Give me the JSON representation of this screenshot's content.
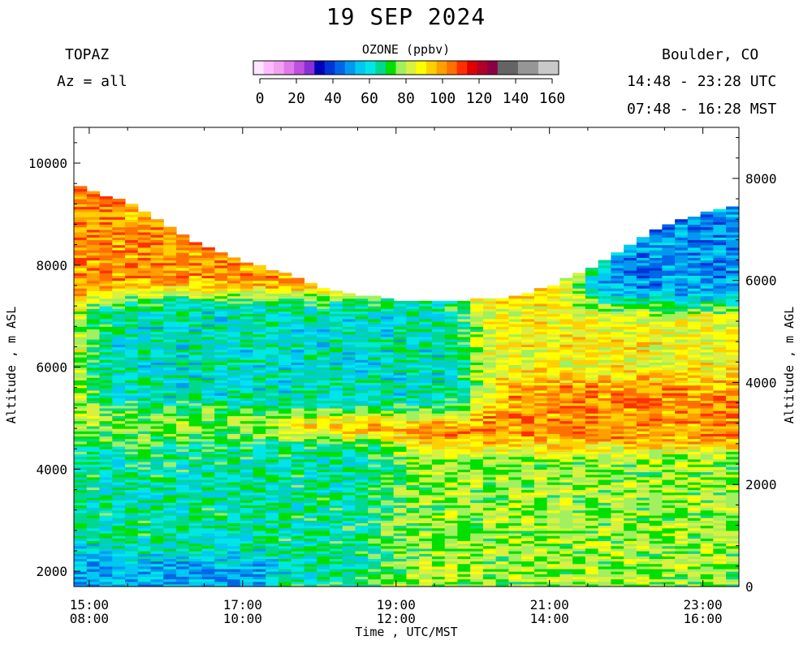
{
  "header": {
    "date_title": "19 SEP 2024",
    "instrument": "TOPAZ",
    "azimuth": "Az = all",
    "location": "Boulder, CO",
    "utc_range": "14:48 - 23:28 UTC",
    "mst_range": "07:48 - 16:28 MST"
  },
  "chart_data": {
    "type": "heatmap",
    "title": "19 SEP 2024",
    "xlabel": "Time , UTC/MST",
    "ylabel": "Altitude , m ASL",
    "ylabel_right": "Altitude , m AGL",
    "x_range_utc_hours": [
      14.8,
      23.47
    ],
    "y_range_asl_m": [
      1700,
      10700
    ],
    "y_right_offset_m": 1700,
    "x_ticks": [
      {
        "utc": "15:00",
        "mst": "08:00",
        "hour": 15
      },
      {
        "utc": "17:00",
        "mst": "10:00",
        "hour": 17
      },
      {
        "utc": "19:00",
        "mst": "12:00",
        "hour": 19
      },
      {
        "utc": "21:00",
        "mst": "14:00",
        "hour": 21
      },
      {
        "utc": "23:00",
        "mst": "16:00",
        "hour": 23
      }
    ],
    "y_ticks_left": [
      2000,
      4000,
      6000,
      8000,
      10000
    ],
    "y_ticks_right": [
      0,
      2000,
      4000,
      6000,
      8000
    ],
    "colorbar": {
      "label": "OZONE (ppbv)",
      "ticks": [
        0,
        20,
        40,
        60,
        80,
        100,
        120,
        140,
        160
      ],
      "range": [
        0,
        160
      ],
      "colors": [
        "#ffe6ff",
        "#ffbbff",
        "#f2a0f2",
        "#e07ae8",
        "#c050e0",
        "#8a2fd8",
        "#0000b8",
        "#0033d8",
        "#0066e8",
        "#0099ee",
        "#00c8f0",
        "#00e6e6",
        "#00d890",
        "#00e000",
        "#a0f060",
        "#d8f040",
        "#ffff00",
        "#ffd000",
        "#ffa000",
        "#ff7000",
        "#ff3000",
        "#e00000",
        "#b0002a",
        "#8a0044",
        "#646464",
        "#646464",
        "#969696",
        "#969696",
        "#c8c8c8",
        "#c8c8c8"
      ]
    },
    "profile_top_asl_m": [
      {
        "hour": 14.8,
        "alt": 9550
      },
      {
        "hour": 15.5,
        "alt": 9200
      },
      {
        "hour": 16.0,
        "alt": 8750
      },
      {
        "hour": 16.5,
        "alt": 8350
      },
      {
        "hour": 17.0,
        "alt": 8050
      },
      {
        "hour": 17.5,
        "alt": 7850
      },
      {
        "hour": 18.0,
        "alt": 7550
      },
      {
        "hour": 18.5,
        "alt": 7400
      },
      {
        "hour": 19.0,
        "alt": 7300
      },
      {
        "hour": 19.5,
        "alt": 7250
      },
      {
        "hour": 20.0,
        "alt": 7300
      },
      {
        "hour": 20.5,
        "alt": 7350
      },
      {
        "hour": 21.0,
        "alt": 7550
      },
      {
        "hour": 21.5,
        "alt": 7900
      },
      {
        "hour": 22.0,
        "alt": 8350
      },
      {
        "hour": 22.5,
        "alt": 8750
      },
      {
        "hour": 23.0,
        "alt": 9000
      },
      {
        "hour": 23.45,
        "alt": 9150
      }
    ],
    "ozone_features_ppbv": [
      {
        "region": "upper, late afternoon",
        "hours": [
          22.0,
          23.45
        ],
        "alt_range": [
          7500,
          9100
        ],
        "ozone": 32
      },
      {
        "region": "mid troposphere, 21-23 UTC",
        "hours": [
          20.5,
          23.2
        ],
        "alt_range": [
          6200,
          7000
        ],
        "ozone": 82
      },
      {
        "region": "mid troposphere, morning",
        "hours": [
          15.5,
          19.5
        ],
        "alt_range": [
          5500,
          7000
        ],
        "ozone": 48
      },
      {
        "region": "morning layer",
        "hours": [
          14.8,
          17.0
        ],
        "alt_range": [
          4300,
          4800
        ],
        "ozone": 68
      },
      {
        "region": "lower troposphere, morning",
        "hours": [
          14.8,
          18.5
        ],
        "alt_range": [
          2000,
          4200
        ],
        "ozone": 52
      },
      {
        "region": "boundary layer, afternoon",
        "hours": [
          19.5,
          23.45
        ],
        "alt_range": [
          1750,
          4000
        ],
        "ozone": 70
      },
      {
        "region": "near surface, morning",
        "hours": [
          14.8,
          17.0
        ],
        "alt_range": [
          1750,
          2000
        ],
        "ozone": 38
      }
    ]
  }
}
